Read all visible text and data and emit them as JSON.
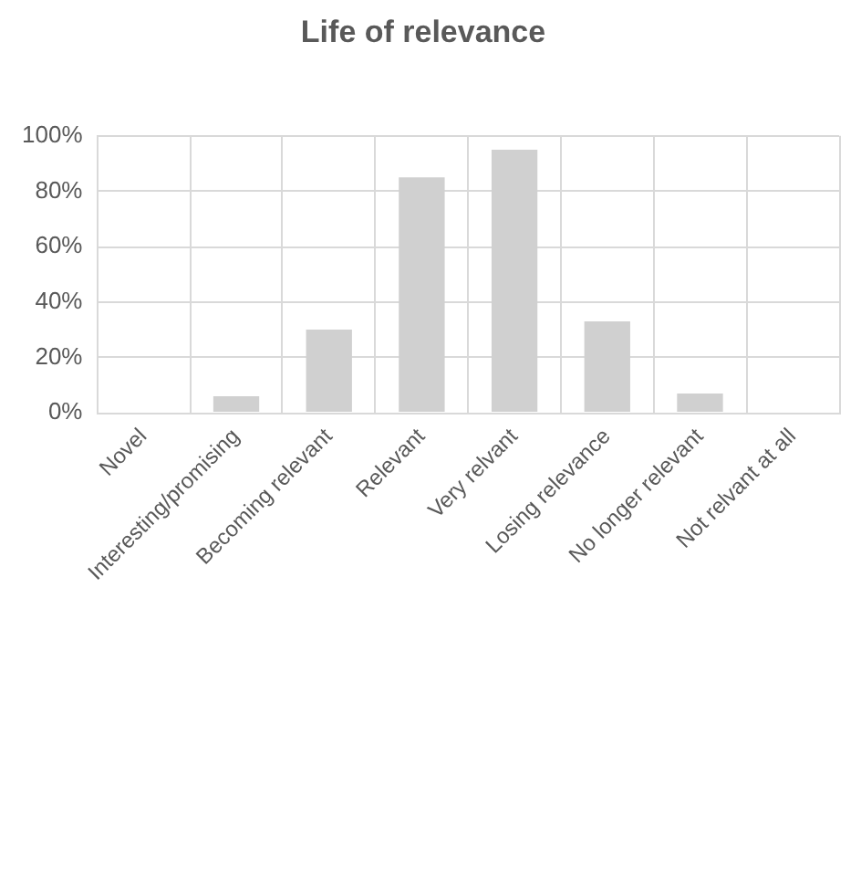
{
  "chart_data": {
    "type": "bar",
    "title": "Life of relevance",
    "categories": [
      "Novel",
      "Interesting/promising",
      "Becoming relevant",
      "Relevant",
      "Very relvant",
      "Losing relevance",
      "No longer relevant",
      "Not relvant at all"
    ],
    "values": [
      0,
      6,
      30,
      85,
      95,
      33,
      7,
      0
    ],
    "color": "#d0d0d0",
    "ylim": [
      0,
      100
    ],
    "yticks": [
      {
        "value": 0,
        "label": "0%"
      },
      {
        "value": 20,
        "label": "20%"
      },
      {
        "value": 40,
        "label": "40%"
      },
      {
        "value": 60,
        "label": "60%"
      },
      {
        "value": 80,
        "label": "80%"
      },
      {
        "value": 100,
        "label": "100%"
      }
    ],
    "grid": true
  }
}
